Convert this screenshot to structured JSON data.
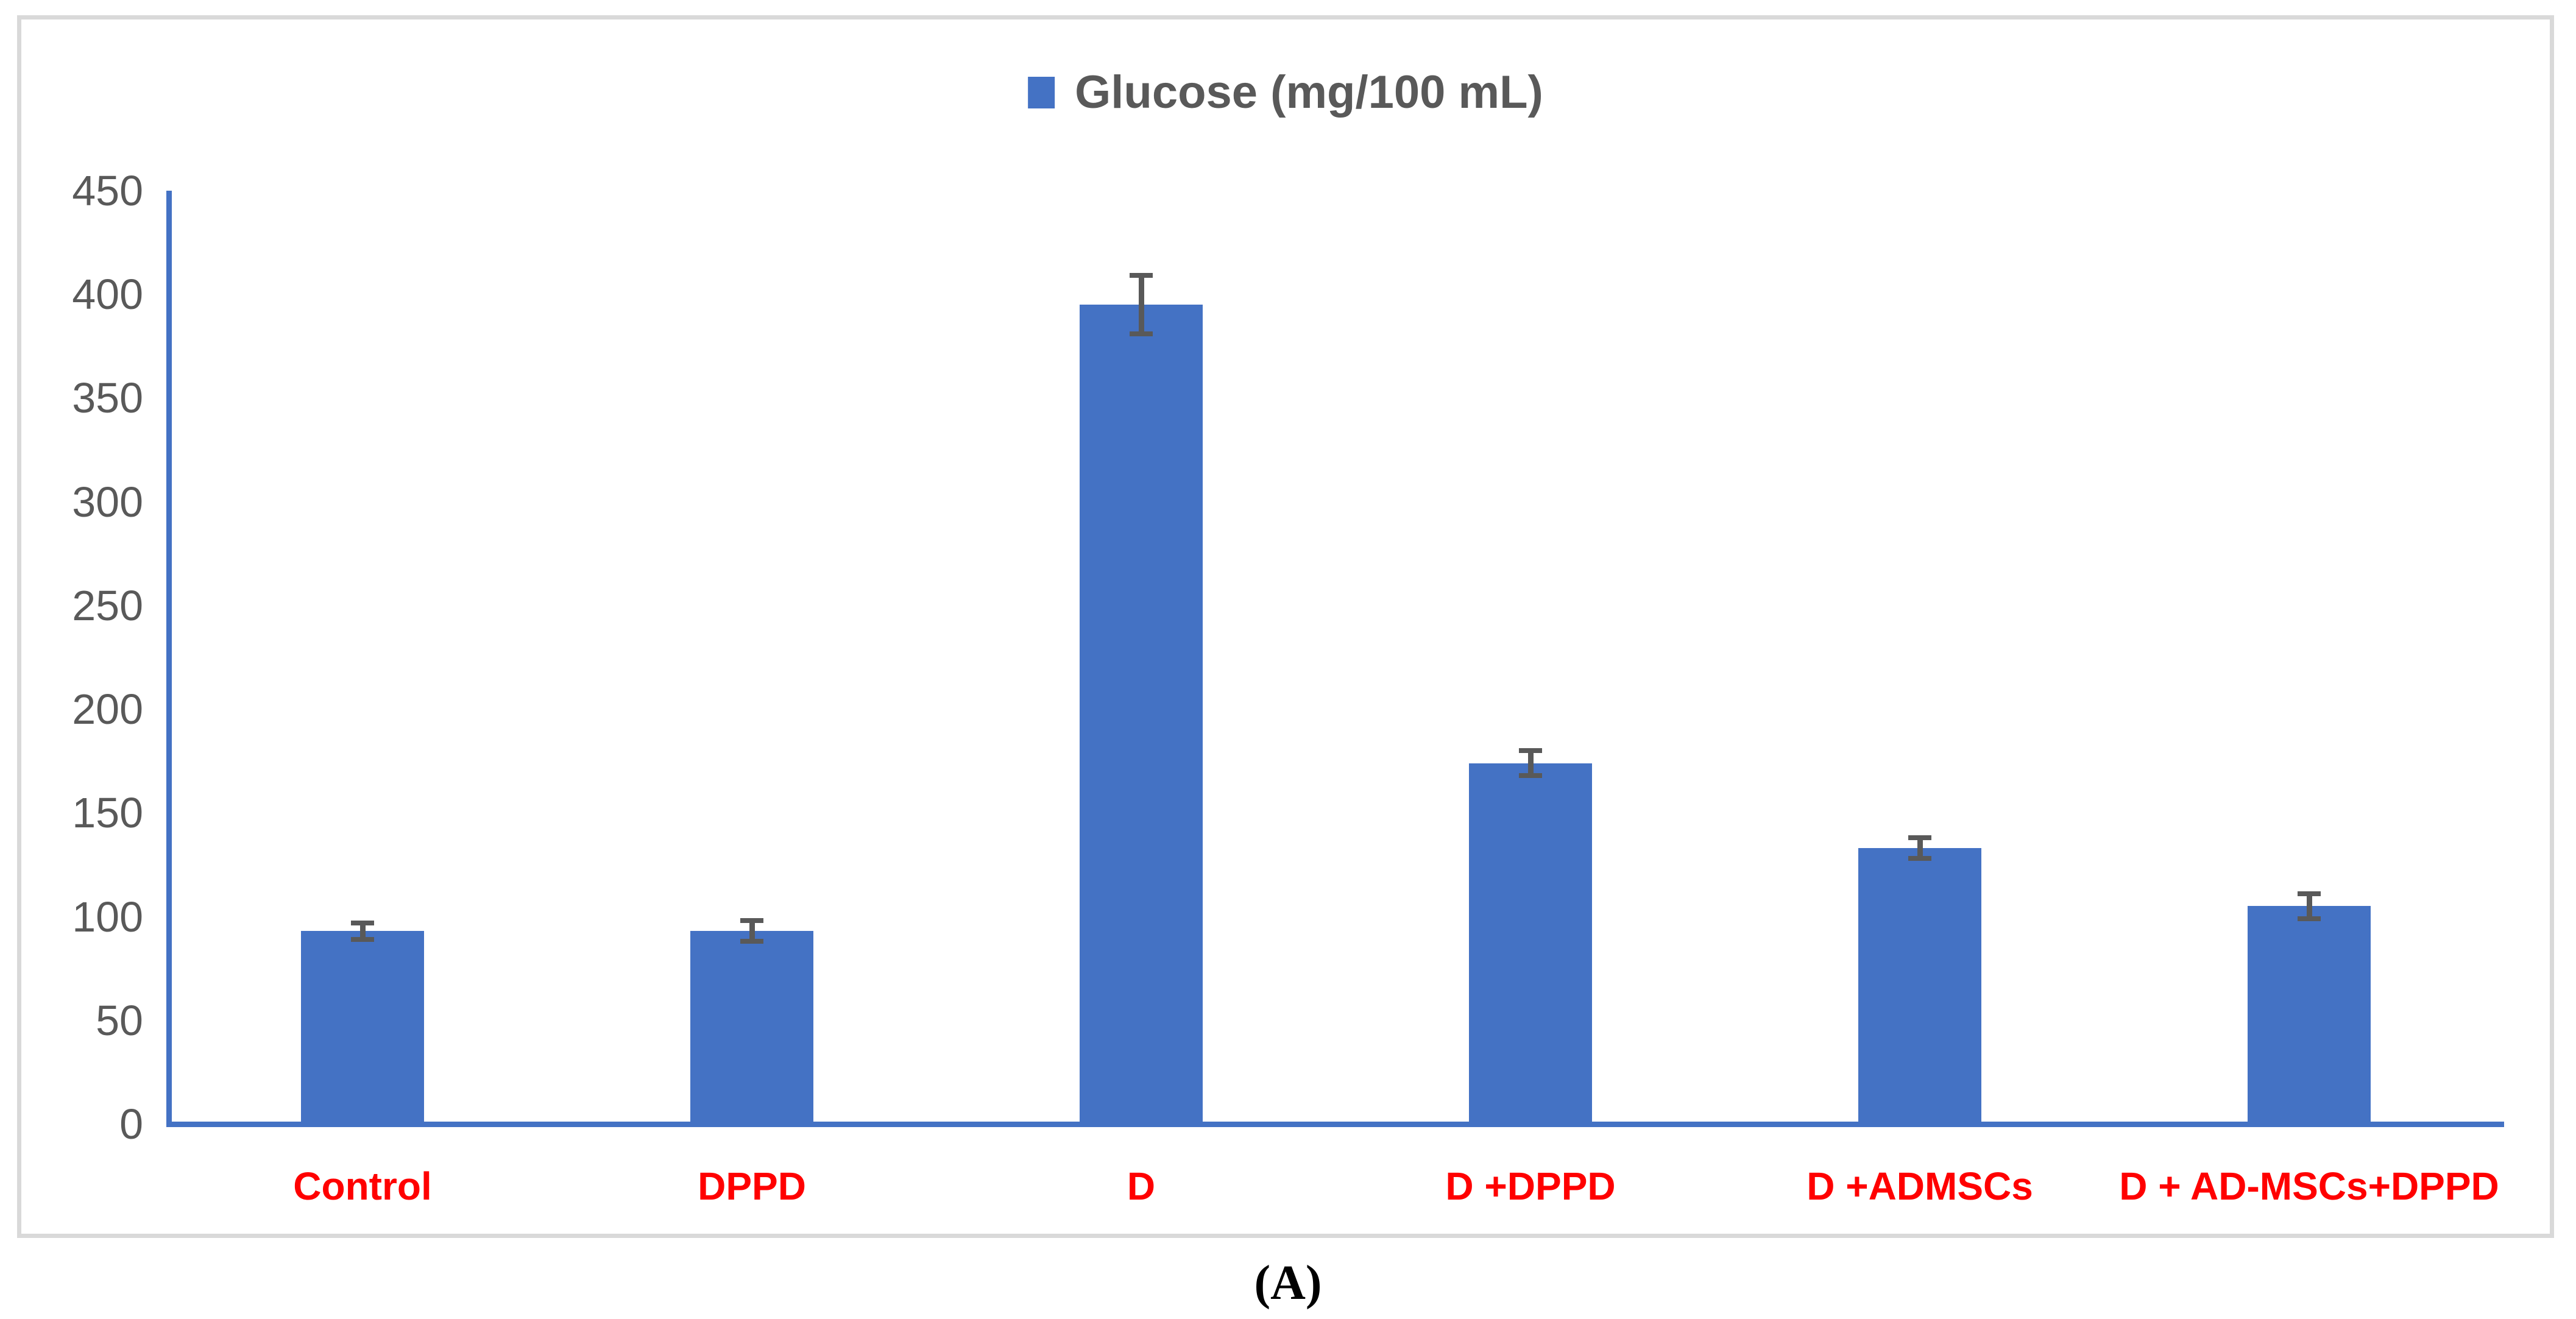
{
  "figure": {
    "caption": "(A)"
  },
  "chart_data": {
    "type": "bar",
    "title": "",
    "legend_position": "top-center",
    "grid": false,
    "legend": [
      {
        "label": "Glucose (mg/100 mL)",
        "color": "#4472C4"
      }
    ],
    "categories": [
      "Control",
      "DPPD",
      "D",
      "D +DPPD",
      "D +ADMSCs",
      "D + AD-MSCs+DPPD"
    ],
    "series": [
      {
        "name": "Glucose (mg/100 mL)",
        "values": [
          93,
          93,
          395,
          174,
          133,
          105
        ],
        "errors": [
          4,
          5,
          14,
          6,
          5,
          6
        ]
      }
    ],
    "xlabel": "",
    "ylabel": "",
    "ylim": [
      0,
      450
    ],
    "ytick_step": 50,
    "yticks": [
      0,
      50,
      100,
      150,
      200,
      250,
      300,
      350,
      400,
      450
    ],
    "colors": {
      "bar": "#4472C4",
      "axis": "#4472C4",
      "error_bar": "#595959",
      "tick_label": "#595959",
      "category_label": "#FF0000",
      "legend_text": "#595959",
      "frame_border": "#D9D9D9"
    }
  }
}
